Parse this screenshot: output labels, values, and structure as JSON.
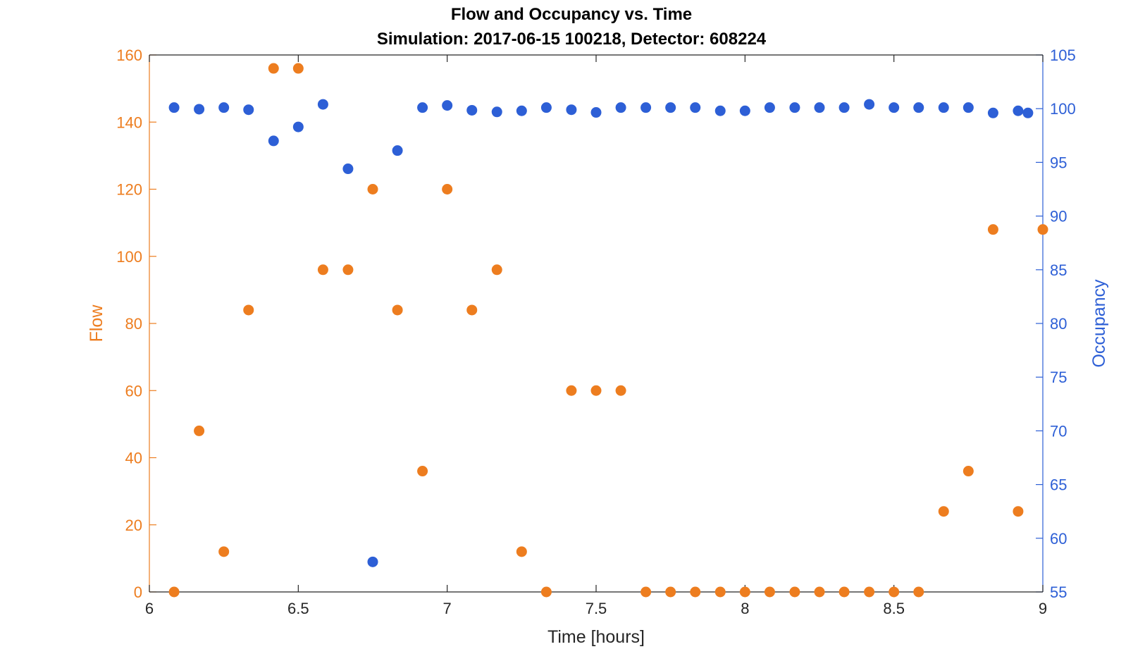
{
  "chart_data": {
    "type": "scatter",
    "title": "Flow and Occupancy vs. Time",
    "subtitle": "Simulation:  2017-06-15 100218,  Detector:  608224",
    "xlabel": "Time [hours]",
    "ylabel_left": "Flow",
    "ylabel_right": "Occupancy",
    "xlim": [
      6,
      9
    ],
    "ylim_left": [
      0,
      160
    ],
    "ylim_right": [
      55,
      105
    ],
    "xticks": [
      "6",
      "6.5",
      "7",
      "7.5",
      "8",
      "8.5",
      "9"
    ],
    "yticks_left": [
      "0",
      "20",
      "40",
      "60",
      "80",
      "100",
      "120",
      "140",
      "160"
    ],
    "yticks_right": [
      "55",
      "60",
      "65",
      "70",
      "75",
      "80",
      "85",
      "90",
      "95",
      "100",
      "105"
    ],
    "grid": false,
    "colors": {
      "flow": "#ed7d1f",
      "occupancy": "#2d5fd6",
      "axes": "#262626"
    },
    "series": [
      {
        "name": "Flow",
        "axis": "left",
        "x": [
          6.083,
          6.167,
          6.25,
          6.333,
          6.417,
          6.5,
          6.583,
          6.667,
          6.75,
          6.833,
          6.917,
          7.0,
          7.083,
          7.167,
          7.25,
          7.333,
          7.417,
          7.5,
          7.583,
          7.667,
          7.75,
          7.833,
          7.917,
          8.0,
          8.083,
          8.167,
          8.25,
          8.333,
          8.417,
          8.5,
          8.583,
          8.667,
          8.75,
          8.833,
          8.917,
          9.0
        ],
        "y": [
          0,
          48,
          12,
          84,
          156,
          156,
          96,
          96,
          120,
          84,
          36,
          120,
          84,
          96,
          12,
          0,
          60,
          60,
          60,
          0,
          0,
          0,
          0,
          0,
          0,
          0,
          0,
          0,
          0,
          0,
          0,
          24,
          36,
          108,
          24,
          108
        ]
      },
      {
        "name": "Occupancy",
        "axis": "right",
        "x": [
          6.083,
          6.167,
          6.25,
          6.333,
          6.417,
          6.5,
          6.583,
          6.667,
          6.75,
          6.833,
          6.917,
          7.0,
          7.083,
          7.167,
          7.25,
          7.333,
          7.417,
          7.5,
          7.583,
          7.667,
          7.75,
          7.833,
          7.917,
          8.0,
          8.083,
          8.167,
          8.25,
          8.333,
          8.417,
          8.5,
          8.583,
          8.667,
          8.75,
          8.833,
          8.917,
          8.95
        ],
        "y": [
          100.1,
          99.95,
          100.1,
          99.9,
          97.0,
          98.3,
          100.4,
          94.4,
          57.8,
          96.1,
          100.1,
          100.3,
          99.85,
          99.7,
          99.8,
          100.1,
          99.9,
          99.65,
          100.1,
          100.1,
          100.1,
          100.1,
          99.8,
          99.8,
          100.1,
          100.1,
          100.1,
          100.1,
          100.4,
          100.1,
          100.1,
          100.1,
          100.1,
          99.6,
          99.8,
          99.6
        ]
      }
    ]
  }
}
